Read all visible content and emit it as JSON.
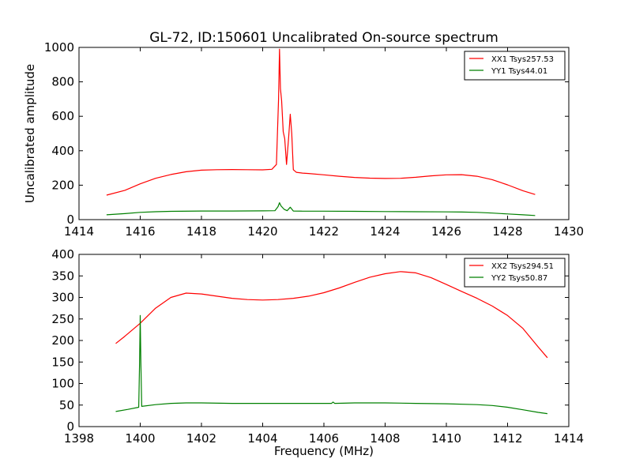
{
  "chart_data": [
    {
      "type": "line",
      "title": "GL-72, ID:150601 Uncalibrated On-source spectrum",
      "xlabel": "",
      "ylabel": "Uncalibrated amplitude",
      "xlim": [
        1414,
        1430
      ],
      "ylim": [
        0,
        1000
      ],
      "xticks": [
        1414,
        1416,
        1418,
        1420,
        1422,
        1424,
        1426,
        1428,
        1430
      ],
      "yticks": [
        0,
        200,
        400,
        600,
        800,
        1000
      ],
      "legend_position": "top-right",
      "series": [
        {
          "name": "XX1 Tsys257.53",
          "color": "#ff0000",
          "x": [
            1414.9,
            1415.5,
            1416.0,
            1416.5,
            1417.0,
            1417.5,
            1418.0,
            1418.5,
            1419.0,
            1419.5,
            1420.0,
            1420.3,
            1420.45,
            1420.52,
            1420.55,
            1420.58,
            1420.62,
            1420.67,
            1420.72,
            1420.78,
            1420.85,
            1420.9,
            1420.95,
            1421.0,
            1421.1,
            1421.3,
            1421.5,
            1422.0,
            1422.5,
            1423.0,
            1423.5,
            1424.0,
            1424.5,
            1425.0,
            1425.5,
            1426.0,
            1426.5,
            1427.0,
            1427.5,
            1428.0,
            1428.5,
            1428.9
          ],
          "values": [
            142,
            170,
            208,
            240,
            262,
            278,
            287,
            290,
            291,
            290,
            289,
            292,
            320,
            700,
            990,
            760,
            690,
            510,
            470,
            320,
            480,
            612,
            500,
            290,
            275,
            270,
            268,
            260,
            252,
            245,
            241,
            239,
            240,
            246,
            254,
            260,
            261,
            252,
            232,
            202,
            168,
            146
          ]
        },
        {
          "name": "YY1 Tsys44.01",
          "color": "#008000",
          "x": [
            1414.9,
            1415.5,
            1416.0,
            1416.5,
            1417.0,
            1418.0,
            1419.0,
            1420.0,
            1420.4,
            1420.5,
            1420.55,
            1420.6,
            1420.7,
            1420.8,
            1420.9,
            1421.0,
            1421.3,
            1422.0,
            1423.0,
            1424.0,
            1425.0,
            1426.0,
            1426.5,
            1427.0,
            1427.5,
            1428.0,
            1428.5,
            1428.9
          ],
          "values": [
            28,
            35,
            42,
            46,
            48,
            50,
            50,
            51,
            52,
            75,
            98,
            80,
            60,
            52,
            72,
            50,
            49,
            49,
            48,
            47,
            46,
            45,
            44,
            42,
            38,
            33,
            28,
            24
          ]
        }
      ]
    },
    {
      "type": "line",
      "title": "",
      "xlabel": "Frequency (MHz)",
      "ylabel": "",
      "xlim": [
        1398,
        1414
      ],
      "ylim": [
        0,
        400
      ],
      "xticks": [
        1398,
        1400,
        1402,
        1404,
        1406,
        1408,
        1410,
        1412,
        1414
      ],
      "yticks": [
        0,
        50,
        100,
        150,
        200,
        250,
        300,
        350,
        400
      ],
      "legend_position": "top-right",
      "series": [
        {
          "name": "XX2 Tsys294.51",
          "color": "#ff0000",
          "x": [
            1399.2,
            1399.5,
            1400.0,
            1400.5,
            1401.0,
            1401.5,
            1402.0,
            1402.5,
            1403.0,
            1403.5,
            1404.0,
            1404.5,
            1405.0,
            1405.5,
            1406.0,
            1406.5,
            1407.0,
            1407.5,
            1408.0,
            1408.5,
            1409.0,
            1409.5,
            1410.0,
            1410.5,
            1411.0,
            1411.5,
            1412.0,
            1412.5,
            1413.0,
            1413.3
          ],
          "values": [
            193,
            210,
            240,
            275,
            300,
            310,
            308,
            303,
            298,
            295,
            294,
            295,
            298,
            303,
            311,
            322,
            335,
            347,
            355,
            360,
            357,
            346,
            330,
            314,
            298,
            280,
            258,
            228,
            185,
            160
          ]
        },
        {
          "name": "YY2 Tsys50.87",
          "color": "#008000",
          "x": [
            1399.2,
            1399.6,
            1399.95,
            1399.98,
            1400.0,
            1400.02,
            1400.05,
            1400.5,
            1401.0,
            1401.5,
            1402.0,
            1403.0,
            1404.0,
            1405.0,
            1406.0,
            1406.25,
            1406.3,
            1406.35,
            1407.0,
            1408.0,
            1409.0,
            1410.0,
            1411.0,
            1411.5,
            1412.0,
            1412.5,
            1413.0,
            1413.3
          ],
          "values": [
            35,
            40,
            45,
            150,
            258,
            150,
            47,
            51,
            54,
            55,
            55,
            54,
            54,
            54,
            54,
            54,
            57,
            54,
            55,
            55,
            54,
            53,
            51,
            49,
            45,
            39,
            33,
            30
          ]
        }
      ]
    }
  ]
}
